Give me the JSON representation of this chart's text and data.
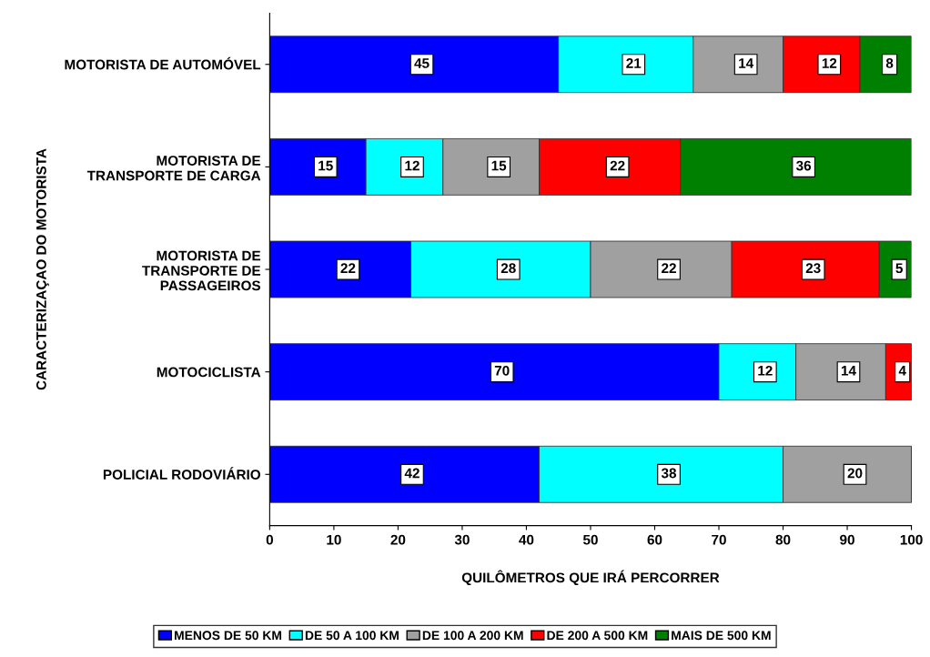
{
  "chart_data": {
    "type": "bar",
    "orientation": "horizontal",
    "stacked": true,
    "data_labels": true,
    "legend": "bottom",
    "grid": false,
    "xlabel": "QUILÔMETROS QUE IRÁ PERCORRER",
    "ylabel": "CARACTERIZAÇAO DO MOTORISTA",
    "categories": [
      "MOTORISTA DE AUTOMÓVEL",
      "MOTORISTA DE\nTRANSPORTE DE CARGA",
      "MOTORISTA DE\nTRANSPORTE DE\nPASSAGEIROS",
      "MOTOCICLISTA",
      "POLICIAL RODOVIÁRIO"
    ],
    "xlim": [
      0,
      100
    ],
    "xticks": [
      0,
      10,
      20,
      30,
      40,
      50,
      60,
      70,
      80,
      90,
      100
    ],
    "series": [
      {
        "name": "MENOS DE 50 KM",
        "color": "#0000ff",
        "values": [
          45,
          15,
          22,
          70,
          42
        ]
      },
      {
        "name": "DE 50 A 100 KM",
        "color": "#00ffff",
        "values": [
          21,
          12,
          28,
          12,
          38
        ]
      },
      {
        "name": "DE 100 A 200 KM",
        "color": "#a0a0a0",
        "values": [
          14,
          15,
          22,
          14,
          20
        ]
      },
      {
        "name": "DE 200 A 500 KM",
        "color": "#ff0000",
        "values": [
          12,
          22,
          23,
          4,
          null
        ]
      },
      {
        "name": "MAIS DE 500 KM",
        "color": "#008000",
        "values": [
          8,
          36,
          5,
          null,
          null
        ]
      }
    ]
  }
}
